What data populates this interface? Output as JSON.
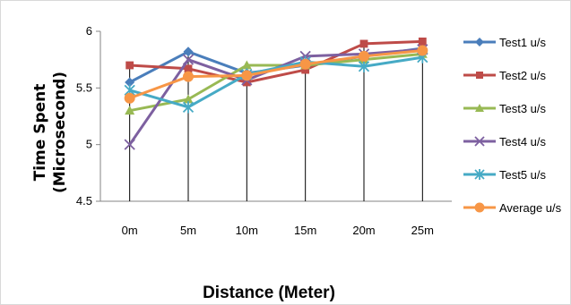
{
  "chart_data": {
    "type": "line",
    "title": "",
    "xlabel": "Distance (Meter)",
    "ylabel_line1": "Time Spent",
    "ylabel_line2": "(Microsecond)",
    "categories": [
      "0m",
      "5m",
      "10m",
      "15m",
      "20m",
      "25m"
    ],
    "ylim": [
      4.5,
      6
    ],
    "yticks": [
      "4.5",
      "5",
      "5.5",
      "6"
    ],
    "ytick_values": [
      4.5,
      5,
      5.5,
      6
    ],
    "grid": false,
    "drop_lines": true,
    "legend_position": "right",
    "series": [
      {
        "name": "Test1 u/s",
        "color": "#4A7EBB",
        "marker": "diamond",
        "values": [
          5.55,
          5.82,
          5.63,
          5.7,
          5.78,
          5.85
        ]
      },
      {
        "name": "Test2 u/s",
        "color": "#BE4B48",
        "marker": "square",
        "values": [
          5.7,
          5.67,
          5.55,
          5.66,
          5.89,
          5.91
        ]
      },
      {
        "name": "Test3 u/s",
        "color": "#98B954",
        "marker": "triangle",
        "values": [
          5.3,
          5.4,
          5.7,
          5.7,
          5.75,
          5.8
        ]
      },
      {
        "name": "Test4 u/s",
        "color": "#7D60A0",
        "marker": "x",
        "values": [
          5.0,
          5.75,
          5.57,
          5.78,
          5.8,
          5.84
        ]
      },
      {
        "name": "Test5 u/s",
        "color": "#46AAC5",
        "marker": "asterisk",
        "values": [
          5.48,
          5.33,
          5.62,
          5.73,
          5.69,
          5.77
        ]
      },
      {
        "name": "Average u/s",
        "color": "#F79646",
        "marker": "circle",
        "values": [
          5.41,
          5.6,
          5.61,
          5.71,
          5.78,
          5.83
        ]
      }
    ]
  }
}
